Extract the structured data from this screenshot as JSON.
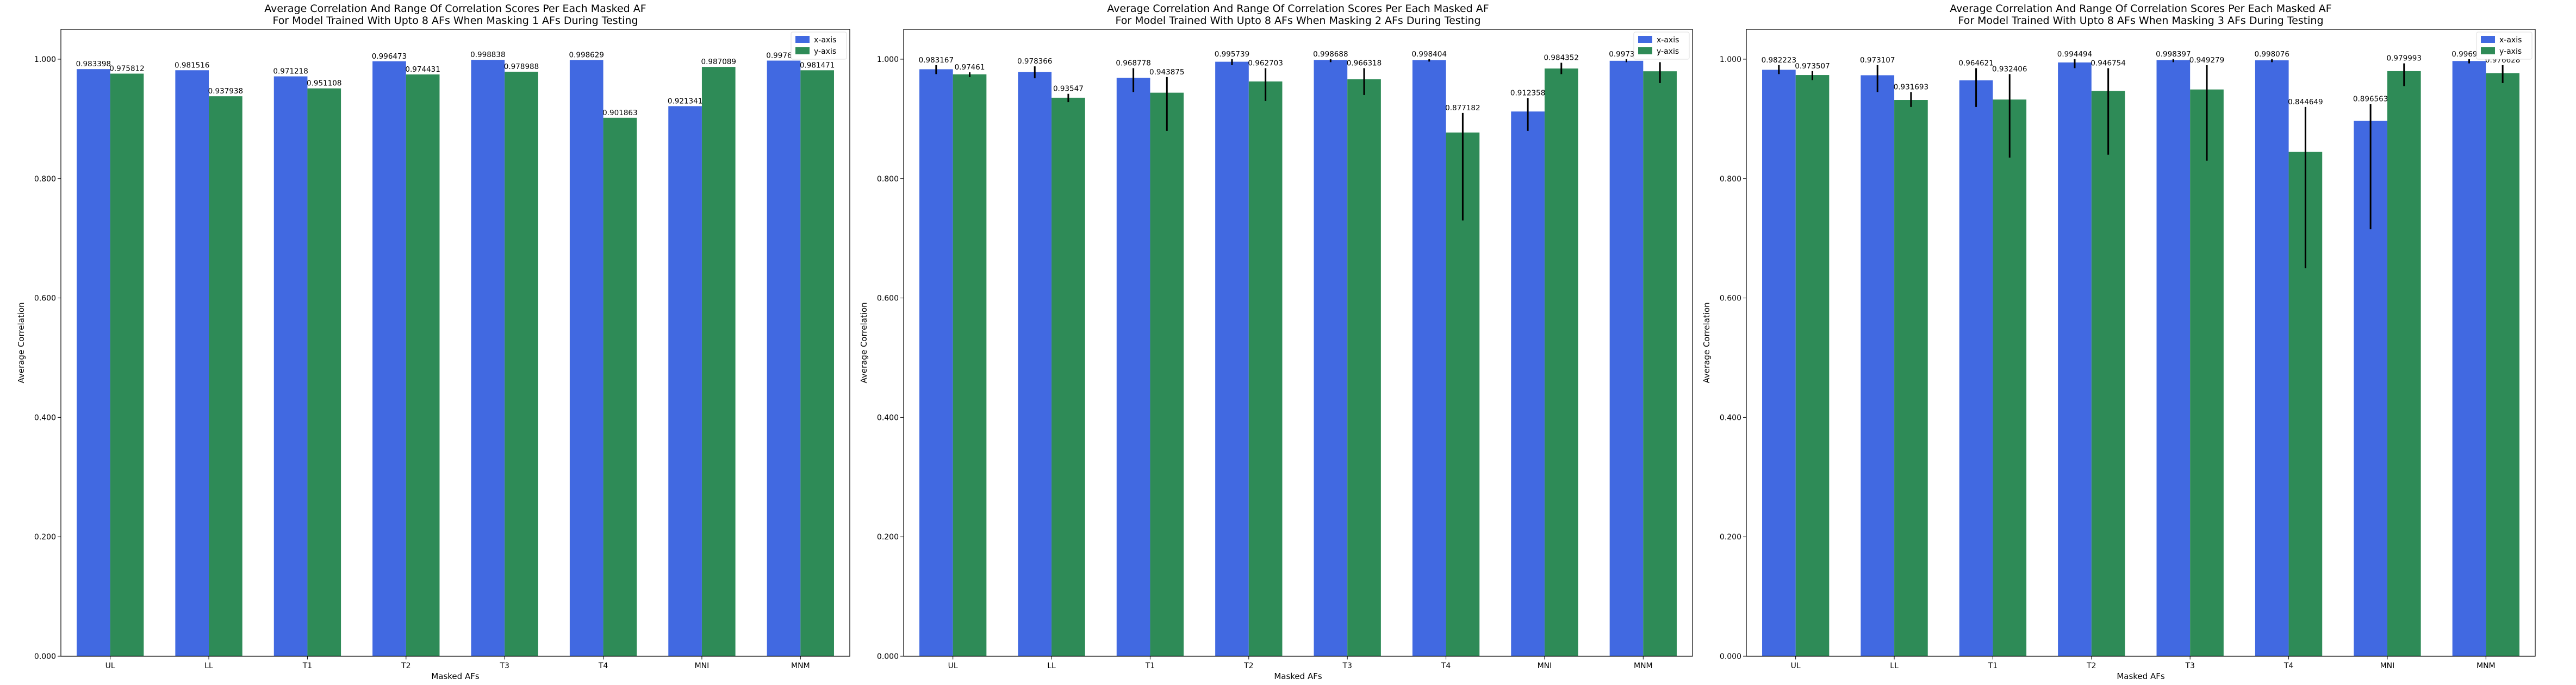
{
  "colors": {
    "x_axis": "#4169e1",
    "y_axis": "#2e8b57",
    "error": "#000000"
  },
  "chart_data": [
    {
      "type": "bar",
      "title_line1": "Average Correlation And Range Of Correlation Scores Per Each Masked AF",
      "title_line2": "For Model Trained With Upto 8 AFs When Masking 1 AFs During Testing",
      "xlabel": "Masked AFs",
      "ylabel": "Average Correlation",
      "categories": [
        "UL",
        "LL",
        "T1",
        "T2",
        "T3",
        "T4",
        "MNI",
        "MNM"
      ],
      "ylim": [
        0,
        1.05
      ],
      "yticks": [
        "0.000",
        "0.200",
        "0.400",
        "0.600",
        "0.800",
        "1.000"
      ],
      "legend_position": "upper right",
      "series": [
        {
          "name": "x-axis",
          "values": [
            0.983398,
            0.981516,
            0.971218,
            0.996473,
            0.998838,
            0.998629,
            0.921341,
            0.997641
          ],
          "labels": [
            "0.983398",
            "0.981516",
            "0.971218",
            "0.996473",
            "0.998838",
            "0.998629",
            "0.921341",
            "0.997641"
          ],
          "err_low": [
            0.983398,
            0.981516,
            0.971218,
            0.996473,
            0.998838,
            0.998629,
            0.921341,
            0.997641
          ],
          "err_high": [
            0.983398,
            0.981516,
            0.971218,
            0.996473,
            0.998838,
            0.998629,
            0.921341,
            0.997641
          ]
        },
        {
          "name": "y-axis",
          "values": [
            0.975812,
            0.937938,
            0.951108,
            0.974431,
            0.978988,
            0.901863,
            0.987089,
            0.981471
          ],
          "labels": [
            "0.975812",
            "0.937938",
            "0.951108",
            "0.974431",
            "0.978988",
            "0.901863",
            "0.987089",
            "0.981471"
          ],
          "err_low": [
            0.975812,
            0.937938,
            0.951108,
            0.974431,
            0.978988,
            0.901863,
            0.987089,
            0.981471
          ],
          "err_high": [
            0.975812,
            0.937938,
            0.951108,
            0.974431,
            0.978988,
            0.901863,
            0.987089,
            0.981471
          ]
        }
      ]
    },
    {
      "type": "bar",
      "title_line1": "Average Correlation And Range Of Correlation Scores Per Each Masked AF",
      "title_line2": "For Model Trained With Upto 8 AFs When Masking 2 AFs During Testing",
      "xlabel": "Masked AFs",
      "ylabel": "Average Correlation",
      "categories": [
        "UL",
        "LL",
        "T1",
        "T2",
        "T3",
        "T4",
        "MNI",
        "MNM"
      ],
      "ylim": [
        0,
        1.05
      ],
      "yticks": [
        "0.000",
        "0.200",
        "0.400",
        "0.600",
        "0.800",
        "1.000"
      ],
      "legend_position": "upper right",
      "series": [
        {
          "name": "x-axis",
          "values": [
            0.983167,
            0.978366,
            0.968778,
            0.995739,
            0.998688,
            0.998404,
            0.912358,
            0.997362
          ],
          "labels": [
            "0.983167",
            "0.978366",
            "0.968778",
            "0.995739",
            "0.998688",
            "0.998404",
            "0.912358",
            "0.997362"
          ],
          "err_low": [
            0.975,
            0.968,
            0.945,
            0.99,
            0.995,
            0.996,
            0.88,
            0.995
          ],
          "err_high": [
            0.99,
            0.988,
            0.985,
            1.0,
            1.0,
            1.0,
            0.935,
            1.0
          ]
        },
        {
          "name": "y-axis",
          "values": [
            0.97461,
            0.93547,
            0.943875,
            0.962703,
            0.966318,
            0.877182,
            0.984352,
            0.979771
          ],
          "labels": [
            "0.97461",
            "0.93547",
            "0.943875",
            "0.962703",
            "0.966318",
            "0.877182",
            "0.984352",
            "0.979771"
          ],
          "err_low": [
            0.97,
            0.928,
            0.88,
            0.93,
            0.94,
            0.73,
            0.975,
            0.96
          ],
          "err_high": [
            0.978,
            0.942,
            0.97,
            0.985,
            0.985,
            0.91,
            0.994,
            0.995
          ]
        }
      ]
    },
    {
      "type": "bar",
      "title_line1": "Average Correlation And Range Of Correlation Scores Per Each Masked AF",
      "title_line2": "For Model Trained With Upto 8 AFs When Masking 3 AFs During Testing",
      "xlabel": "Masked AFs",
      "ylabel": "Average Correlation",
      "categories": [
        "UL",
        "LL",
        "T1",
        "T2",
        "T3",
        "T4",
        "MNI",
        "MNM"
      ],
      "ylim": [
        0,
        1.05
      ],
      "yticks": [
        "0.000",
        "0.200",
        "0.400",
        "0.600",
        "0.800",
        "1.000"
      ],
      "legend_position": "upper right",
      "series": [
        {
          "name": "x-axis",
          "values": [
            0.982223,
            0.973107,
            0.964621,
            0.994494,
            0.998397,
            0.998076,
            0.896563,
            0.996958
          ],
          "labels": [
            "0.982223",
            "0.973107",
            "0.964621",
            "0.994494",
            "0.998397",
            "0.998076",
            "0.896563",
            "0.996958"
          ],
          "err_low": [
            0.975,
            0.945,
            0.92,
            0.985,
            0.995,
            0.995,
            0.715,
            0.993
          ],
          "err_high": [
            0.99,
            0.99,
            0.985,
            1.0,
            1.0,
            1.0,
            0.925,
            1.0
          ]
        },
        {
          "name": "y-axis",
          "values": [
            0.973507,
            0.931693,
            0.932406,
            0.946754,
            0.949279,
            0.844649,
            0.979993,
            0.976628
          ],
          "labels": [
            "0.973507",
            "0.931693",
            "0.932406",
            "0.946754",
            "0.949279",
            "0.844649",
            "0.979993",
            "0.976628"
          ],
          "err_low": [
            0.965,
            0.92,
            0.835,
            0.84,
            0.83,
            0.65,
            0.955,
            0.96
          ],
          "err_high": [
            0.98,
            0.945,
            0.975,
            0.985,
            0.99,
            0.92,
            0.993,
            0.99
          ]
        }
      ]
    }
  ]
}
